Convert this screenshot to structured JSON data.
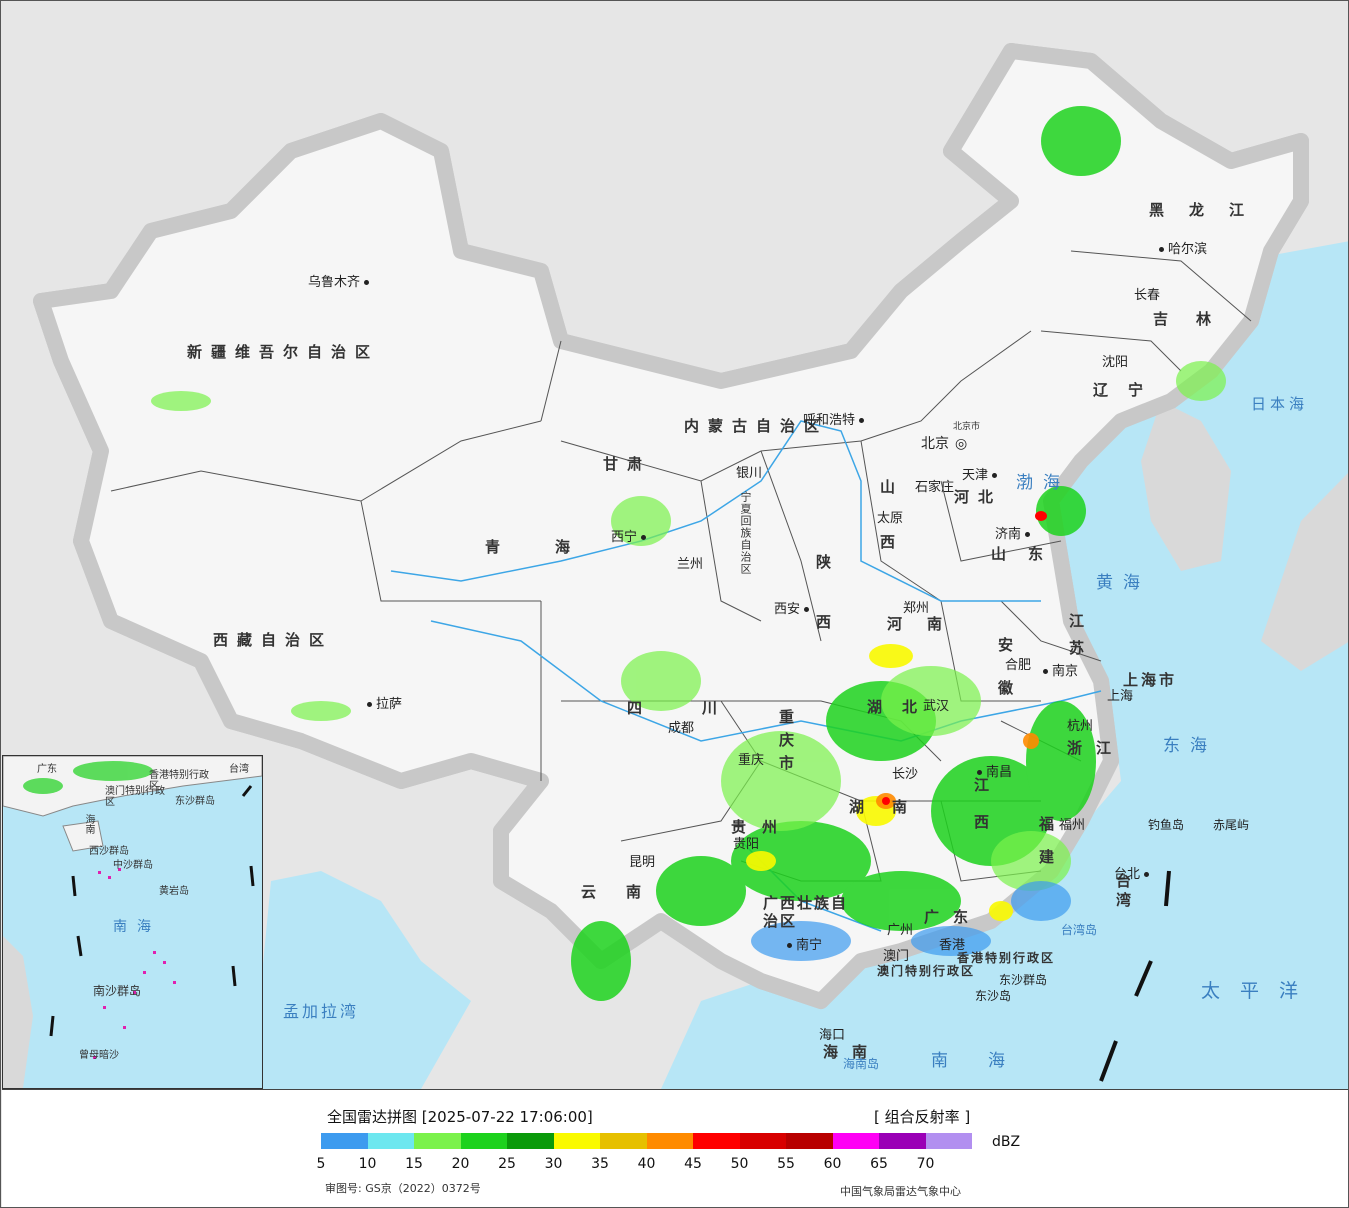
{
  "map": {
    "provinces": [
      {
        "id": "xinjiang",
        "label": "新疆维吾尔自治区"
      },
      {
        "id": "xizang",
        "label": "西藏自治区"
      },
      {
        "id": "qinghai",
        "label": "青海"
      },
      {
        "id": "gansu",
        "label": "甘肃"
      },
      {
        "id": "sichuan",
        "label": "四川"
      },
      {
        "id": "yunnan",
        "label": "云南"
      },
      {
        "id": "neimenggu",
        "label": "内蒙古自治区"
      },
      {
        "id": "heilongjiang",
        "label": "黑龙江"
      },
      {
        "id": "jilin",
        "label": "吉林"
      },
      {
        "id": "liaoning",
        "label": "辽宁"
      },
      {
        "id": "hebei",
        "label": "河北"
      },
      {
        "id": "shanxi",
        "label": "山西"
      },
      {
        "id": "shaanxi",
        "label": "陕西"
      },
      {
        "id": "henan",
        "label": "河南"
      },
      {
        "id": "shandong",
        "label": "山东"
      },
      {
        "id": "jiangsu",
        "label": "江苏"
      },
      {
        "id": "anhui",
        "label": "安徽"
      },
      {
        "id": "hubei",
        "label": "湖北"
      },
      {
        "id": "hunan",
        "label": "湖南"
      },
      {
        "id": "jiangxi",
        "label": "江西"
      },
      {
        "id": "zhejiang",
        "label": "浙江"
      },
      {
        "id": "fujian",
        "label": "福建"
      },
      {
        "id": "guangdong",
        "label": "广东"
      },
      {
        "id": "guangxi",
        "label": "广西壮族自治区"
      },
      {
        "id": "guizhou",
        "label": "贵州"
      },
      {
        "id": "chongqing",
        "label": "重庆市"
      },
      {
        "id": "hainan",
        "label": "海南"
      },
      {
        "id": "taiwan",
        "label": "台湾"
      },
      {
        "id": "ningxia",
        "label": "宁夏回族自治区"
      },
      {
        "id": "shanghai",
        "label": "上海市"
      },
      {
        "id": "hongkong",
        "label": "香港特别行政区"
      },
      {
        "id": "macau",
        "label": "澳门特别行政区"
      }
    ],
    "cities": [
      {
        "id": "urumqi",
        "label": "乌鲁木齐"
      },
      {
        "id": "lhasa",
        "label": "拉萨"
      },
      {
        "id": "xining",
        "label": "西宁"
      },
      {
        "id": "lanzhou",
        "label": "兰州"
      },
      {
        "id": "yinchuan",
        "label": "银川"
      },
      {
        "id": "hohhot",
        "label": "呼和浩特"
      },
      {
        "id": "beijing",
        "label": "北京"
      },
      {
        "id": "beijingshi",
        "label": "北京市"
      },
      {
        "id": "tianjin",
        "label": "天津"
      },
      {
        "id": "shijiazhuang",
        "label": "石家庄"
      },
      {
        "id": "taiyuan",
        "label": "太原"
      },
      {
        "id": "jinan",
        "label": "济南"
      },
      {
        "id": "xian",
        "label": "西安"
      },
      {
        "id": "zhengzhou",
        "label": "郑州"
      },
      {
        "id": "hefei",
        "label": "合肥"
      },
      {
        "id": "nanjing",
        "label": "南京"
      },
      {
        "id": "shanghaicity",
        "label": "上海"
      },
      {
        "id": "hangzhou",
        "label": "杭州"
      },
      {
        "id": "wuhan",
        "label": "武汉"
      },
      {
        "id": "chengdu",
        "label": "成都"
      },
      {
        "id": "chongqingcity",
        "label": "重庆"
      },
      {
        "id": "changsha",
        "label": "长沙"
      },
      {
        "id": "nanchang",
        "label": "南昌"
      },
      {
        "id": "guiyang",
        "label": "贵阳"
      },
      {
        "id": "kunming",
        "label": "昆明"
      },
      {
        "id": "fuzhou",
        "label": "福州"
      },
      {
        "id": "guangzhou",
        "label": "广州"
      },
      {
        "id": "nanning",
        "label": "南宁"
      },
      {
        "id": "haikou",
        "label": "海口"
      },
      {
        "id": "taibei",
        "label": "台北"
      },
      {
        "id": "xianggang",
        "label": "香港"
      },
      {
        "id": "aomen",
        "label": "澳门"
      },
      {
        "id": "shenyang",
        "label": "沈阳"
      },
      {
        "id": "changchun",
        "label": "长春"
      },
      {
        "id": "harbin",
        "label": "哈尔滨"
      }
    ],
    "seas": {
      "bohai": "渤海",
      "huanghai": "黄海",
      "donghai": "东海",
      "nanhai": "南海",
      "taipingyang": "太平洋",
      "ribenhai": "日本海",
      "mengjialawan": "孟加拉湾"
    },
    "islands": {
      "diaoyudao": "钓鱼岛",
      "chiweiyu": "赤尾屿",
      "taiwandao": "台湾岛",
      "hainandao": "海南岛",
      "dongshaqundao": "东沙群岛",
      "dongshadao": "东沙岛"
    },
    "inset": {
      "labels": [
        "广东",
        "澳门特别行政区",
        "香港特别行政区",
        "台湾",
        "东沙群岛",
        "海南",
        "西沙群岛",
        "中沙群岛",
        "黄岩岛",
        "南海",
        "南沙群岛",
        "曾母暗沙"
      ]
    }
  },
  "legend": {
    "title": "全国雷达拼图 [2025-07-22 17:06:00]",
    "product": "[ 组合反射率 ]",
    "unit": "dBZ",
    "colors": [
      "#3d9bef",
      "#6de7ef",
      "#7bf24b",
      "#1dd21d",
      "#0a9a0a",
      "#fafa00",
      "#e6c000",
      "#ff8b00",
      "#ff0000",
      "#d80000",
      "#b80000",
      "#ff00f5",
      "#9a00b6",
      "#b28ff0"
    ],
    "ticks": [
      "5",
      "10",
      "15",
      "20",
      "25",
      "30",
      "35",
      "40",
      "45",
      "50",
      "55",
      "60",
      "65",
      "70"
    ],
    "approval": "审图号: GS京（2022）0372号",
    "agency": "中国气象局雷达气象中心"
  }
}
